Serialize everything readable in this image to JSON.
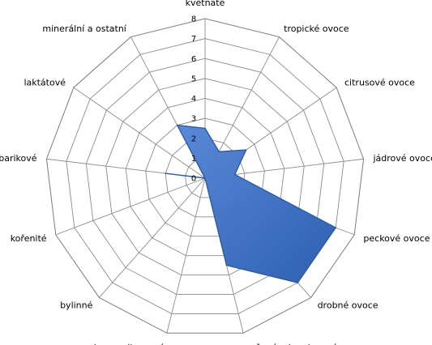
{
  "chart_data": {
    "type": "radar",
    "categories": [
      "květnaté",
      "tropické ovoce",
      "citrusové ovoce",
      "jádrové ovoce",
      "peckové ovoce",
      "drobné ovoce",
      "sušené a kandované ovoce",
      "karamelizované",
      "bylinné",
      "kořenité",
      "barikové",
      "laktátové",
      "minerální a ostatní"
    ],
    "series": [
      {
        "values": [
          2.5,
          1.5,
          2.5,
          1.5,
          7.0,
          7.0,
          4.5,
          0,
          0,
          0,
          2.0,
          0,
          3.0
        ],
        "color": "#3c6fc4"
      }
    ],
    "rlim": [
      0,
      8
    ],
    "ticks": [
      "0",
      "1",
      "2",
      "3",
      "4",
      "5",
      "6",
      "7",
      "8"
    ],
    "grid": true,
    "legend": "none"
  }
}
